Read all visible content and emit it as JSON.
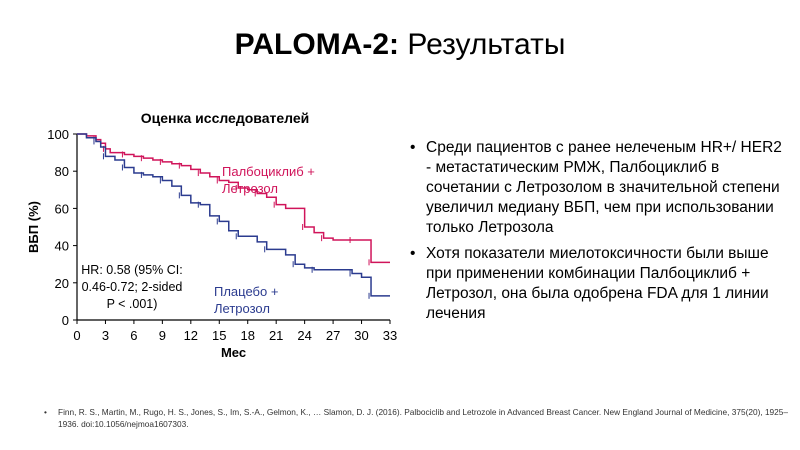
{
  "slide": {
    "title_bold": "PALOMA-2:",
    "title_rest": " Результаты"
  },
  "bullets": [
    "Среди пациентов с ранее нелеченым HR+/ HER2 - метастатическим РМЖ, Палбоциклиб в сочетании с Летрозолом в значительной степени увеличил медиану ВБП, чем при использовании только Летрозола",
    "Хотя показатели миелотоксичности были выше при применении комбинации Палбоциклиб + Летрозол, она была одобрена FDA для 1 линии лечения"
  ],
  "reference": "Finn, R. S., Martin, M., Rugo, H. S., Jones, S., Im, S.-A., Gelmon, K., … Slamon, D. J. (2016). Palbociclib and Letrozole in Advanced Breast Cancer. New England Journal of Medicine, 375(20), 1925–1936. doi:10.1056/nejmoa1607303.",
  "chart_data": {
    "type": "line",
    "title": "Оценка исследователей",
    "xlabel": "Мес",
    "ylabel": "ВБП (%)",
    "xlim": [
      0,
      33
    ],
    "ylim": [
      0,
      100
    ],
    "xticks": [
      0,
      3,
      6,
      9,
      12,
      15,
      18,
      21,
      24,
      27,
      30,
      33
    ],
    "yticks": [
      0,
      20,
      40,
      60,
      80,
      100
    ],
    "annotation": [
      "HR: 0.58 (95% CI:",
      "0.46-0.72; 2-sided",
      "P < .001)"
    ],
    "series": [
      {
        "name": "Палбоциклиб + Летрозол",
        "label_lines": [
          "Палбоциклиб +",
          "Летрозол"
        ],
        "color": "#d0145a",
        "points": [
          [
            0,
            100
          ],
          [
            1,
            99
          ],
          [
            2,
            97
          ],
          [
            2.5,
            95
          ],
          [
            3,
            92
          ],
          [
            3.5,
            90
          ],
          [
            5,
            89
          ],
          [
            6,
            88
          ],
          [
            7,
            87
          ],
          [
            8,
            86
          ],
          [
            9,
            85
          ],
          [
            10,
            84
          ],
          [
            11,
            83
          ],
          [
            12,
            81
          ],
          [
            13,
            79
          ],
          [
            14,
            77
          ],
          [
            15,
            75
          ],
          [
            16,
            74
          ],
          [
            17,
            71
          ],
          [
            18,
            70
          ],
          [
            19,
            68
          ],
          [
            20,
            66
          ],
          [
            21,
            62
          ],
          [
            22,
            60
          ],
          [
            24,
            50
          ],
          [
            25,
            47
          ],
          [
            26,
            44
          ],
          [
            27,
            43
          ],
          [
            29,
            43
          ],
          [
            30,
            43
          ],
          [
            31,
            31
          ],
          [
            33,
            31
          ]
        ]
      },
      {
        "name": "Плацебо + Летрозол",
        "label_lines": [
          "Плацебо +",
          "Летрозол"
        ],
        "color": "#2b3b8f",
        "points": [
          [
            0,
            100
          ],
          [
            1,
            98
          ],
          [
            2,
            96
          ],
          [
            2.5,
            93
          ],
          [
            3,
            88
          ],
          [
            4,
            86
          ],
          [
            5,
            82
          ],
          [
            6,
            79
          ],
          [
            7,
            78
          ],
          [
            8,
            77
          ],
          [
            9,
            75
          ],
          [
            10,
            72
          ],
          [
            11,
            67
          ],
          [
            12,
            63
          ],
          [
            13,
            62
          ],
          [
            14,
            56
          ],
          [
            15,
            53
          ],
          [
            16,
            48
          ],
          [
            17,
            45
          ],
          [
            19,
            42
          ],
          [
            20,
            38
          ],
          [
            22,
            35
          ],
          [
            23,
            30
          ],
          [
            24,
            28
          ],
          [
            25,
            27
          ],
          [
            28,
            27
          ],
          [
            29,
            25
          ],
          [
            30,
            23
          ],
          [
            31,
            13
          ],
          [
            33,
            13
          ]
        ]
      }
    ]
  }
}
